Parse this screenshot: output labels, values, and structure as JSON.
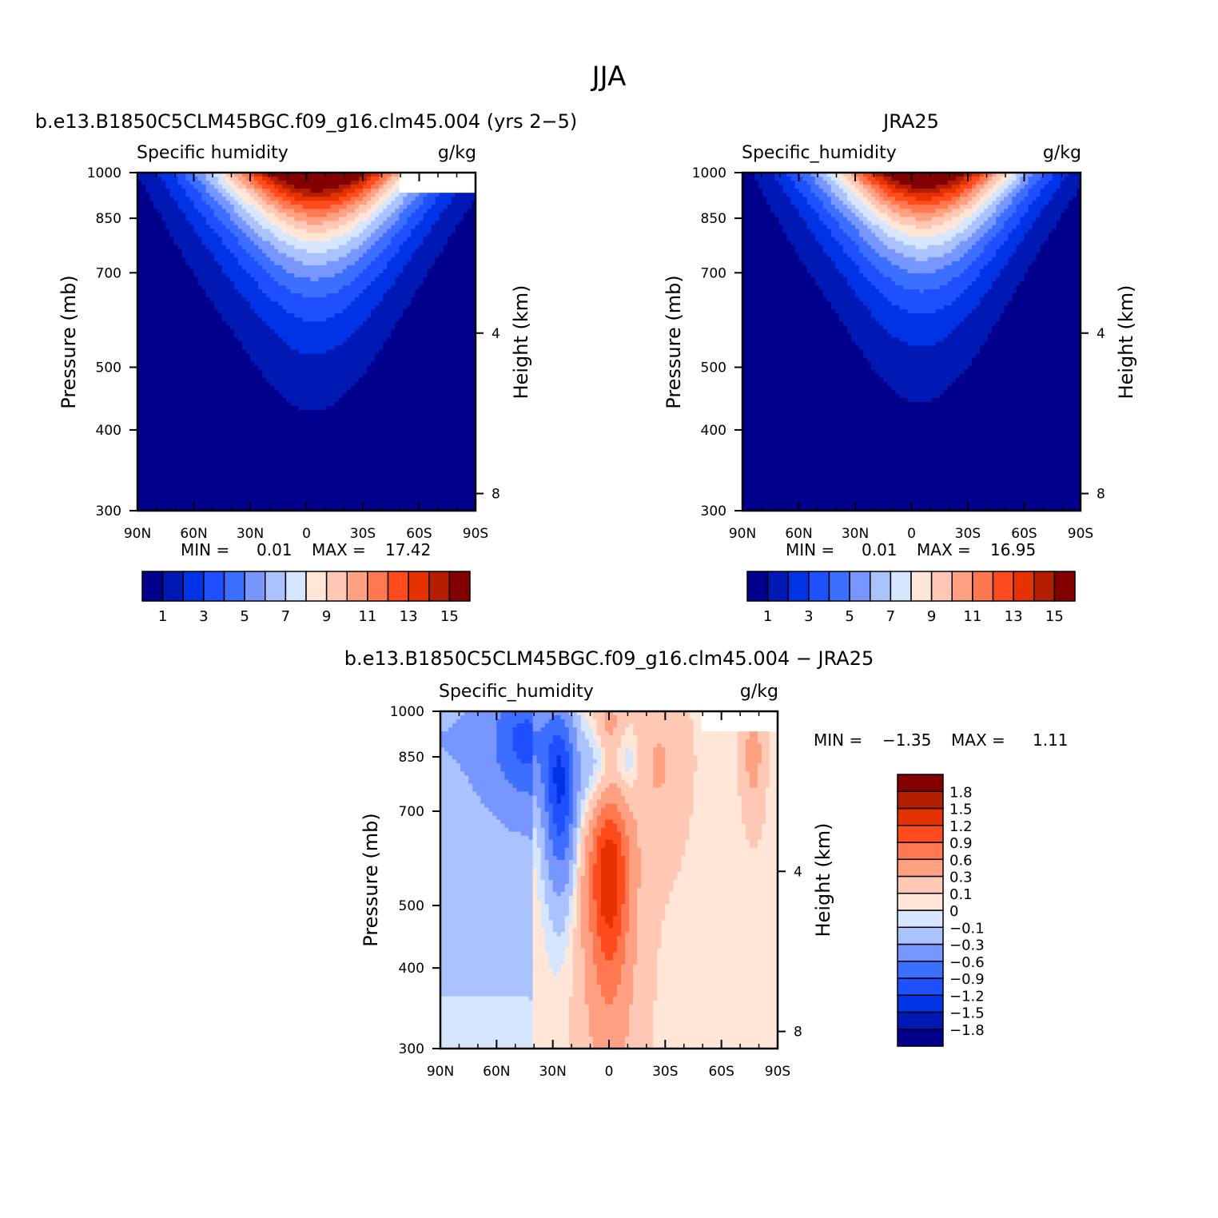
{
  "main_title": "JJA",
  "colors": {
    "full_fill": [
      "#00008c",
      "#0019b4",
      "#0032e6",
      "#1e50ff",
      "#3c6eff",
      "#7896ff",
      "#aac3ff",
      "#d7e6ff",
      "#ffe6d7",
      "#ffc8b4",
      "#ffa082",
      "#ff7850",
      "#ff4b1e",
      "#e63200",
      "#b41e00",
      "#820000"
    ],
    "diff_fill": [
      "#00008c",
      "#0019b4",
      "#0032e6",
      "#1e50ff",
      "#3c6eff",
      "#7896ff",
      "#aac3ff",
      "#d7e6ff",
      "#ffe6d7",
      "#ffc8b4",
      "#ffa082",
      "#ff7850",
      "#ff4b1e",
      "#e63200",
      "#b41e00",
      "#820000"
    ]
  },
  "chart_data": [
    {
      "type": "heatmap",
      "title": "b.e13.B1850C5CLM45BGC.f09_g16.clm45.004 (yrs 2−5)",
      "left_label": "Specific humidity",
      "right_label": "g/kg",
      "ylabel": "Pressure (mb)",
      "ylabel_right": "Height (km)",
      "x_ticks": [
        "90N",
        "60N",
        "30N",
        "0",
        "30S",
        "60S",
        "90S"
      ],
      "x_tick_values": [
        90,
        60,
        30,
        0,
        -30,
        -60,
        -90
      ],
      "xlim": [
        90,
        -90
      ],
      "y_ticks": [
        "300",
        "400",
        "500",
        "700",
        "850",
        "1000"
      ],
      "y_tick_values": [
        300,
        400,
        500,
        700,
        850,
        1000
      ],
      "ylim": [
        1000,
        300
      ],
      "yscale": "log",
      "y2_ticks": [
        "8",
        "4"
      ],
      "y2_tick_values": [
        8,
        4
      ],
      "stat_min_label": "MIN =",
      "stat_min": "0.01",
      "stat_max_label": "MAX =",
      "stat_max": "17.42",
      "peak": 17.42,
      "peak_lat": -8,
      "missing_south_of": -50,
      "missing_above": 930,
      "colorbar": {
        "orientation": "horizontal",
        "levels": [
          1,
          2,
          3,
          4,
          5,
          6,
          7,
          8,
          9,
          10,
          11,
          12,
          13,
          14,
          15
        ],
        "labels": [
          "1",
          "3",
          "5",
          "7",
          "9",
          "11",
          "13",
          "15"
        ],
        "label_values": [
          1,
          3,
          5,
          7,
          9,
          11,
          13,
          15
        ]
      }
    },
    {
      "type": "heatmap",
      "title": "JRA25",
      "left_label": "Specific_humidity",
      "right_label": "g/kg",
      "ylabel": "Pressure (mb)",
      "ylabel_right": "Height (km)",
      "x_ticks": [
        "90N",
        "60N",
        "30N",
        "0",
        "30S",
        "60S",
        "90S"
      ],
      "x_tick_values": [
        90,
        60,
        30,
        0,
        -30,
        -60,
        -90
      ],
      "xlim": [
        90,
        -90
      ],
      "y_ticks": [
        "300",
        "400",
        "500",
        "700",
        "850",
        "1000"
      ],
      "y_tick_values": [
        300,
        400,
        500,
        700,
        850,
        1000
      ],
      "ylim": [
        1000,
        300
      ],
      "yscale": "log",
      "y2_ticks": [
        "8",
        "4"
      ],
      "y2_tick_values": [
        8,
        4
      ],
      "stat_min_label": "MIN =",
      "stat_min": "0.01",
      "stat_max_label": "MAX =",
      "stat_max": "16.95",
      "peak": 16.95,
      "peak_lat": -8,
      "colorbar": {
        "orientation": "horizontal",
        "levels": [
          1,
          2,
          3,
          4,
          5,
          6,
          7,
          8,
          9,
          10,
          11,
          12,
          13,
          14,
          15
        ],
        "labels": [
          "1",
          "3",
          "5",
          "7",
          "9",
          "11",
          "13",
          "15"
        ],
        "label_values": [
          1,
          3,
          5,
          7,
          9,
          11,
          13,
          15
        ]
      }
    },
    {
      "type": "heatmap",
      "title": "b.e13.B1850C5CLM45BGC.f09_g16.clm45.004 − JRA25",
      "left_label": "Specific_humidity",
      "right_label": "g/kg",
      "ylabel": "Pressure (mb)",
      "ylabel_right": "Height (km)",
      "x_ticks": [
        "90N",
        "60N",
        "30N",
        "0",
        "30S",
        "60S",
        "90S"
      ],
      "x_tick_values": [
        90,
        60,
        30,
        0,
        -30,
        -60,
        -90
      ],
      "xlim": [
        90,
        -90
      ],
      "y_ticks": [
        "300",
        "400",
        "500",
        "700",
        "850",
        "1000"
      ],
      "y_tick_values": [
        300,
        400,
        500,
        700,
        850,
        1000
      ],
      "ylim": [
        1000,
        300
      ],
      "yscale": "log",
      "y2_ticks": [
        "8",
        "4"
      ],
      "y2_tick_values": [
        8,
        4
      ],
      "stat_min_label": "MIN =",
      "stat_min": "−1.35",
      "stat_max_label": "MAX =",
      "stat_max": "1.11",
      "missing_south_of": -50,
      "missing_above": 930,
      "colorbar": {
        "orientation": "vertical",
        "levels": [
          -1.8,
          -1.5,
          -1.2,
          -0.9,
          -0.6,
          -0.3,
          -0.1,
          0,
          0.1,
          0.3,
          0.6,
          0.9,
          1.2,
          1.5,
          1.8
        ],
        "labels": [
          "1.8",
          "1.5",
          "1.2",
          "0.9",
          "0.6",
          "0.3",
          "0.1",
          "0",
          "−0.1",
          "−0.3",
          "−0.6",
          "−0.9",
          "−1.2",
          "−1.5",
          "−1.8"
        ],
        "label_values": [
          1.8,
          1.5,
          1.2,
          0.9,
          0.6,
          0.3,
          0.1,
          0,
          -0.1,
          -0.3,
          -0.6,
          -0.9,
          -1.2,
          -1.5,
          -1.8
        ]
      }
    }
  ]
}
